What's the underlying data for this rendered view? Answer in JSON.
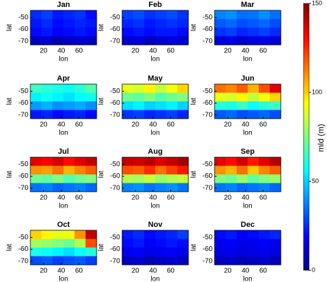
{
  "chart_data": [
    {
      "type": "heatmap",
      "title": "Jan",
      "xlabel": "lon",
      "ylabel": "lat",
      "xlim": [
        5,
        80
      ],
      "ylim": [
        -73,
        -44
      ],
      "xticks": [
        20,
        40,
        60
      ],
      "yticks": [
        -50,
        -60,
        -70
      ],
      "values": [
        [
          25,
          28,
          22,
          24,
          26,
          20
        ],
        [
          22,
          25,
          20,
          22,
          24,
          22
        ],
        [
          20,
          22,
          18,
          20,
          22,
          20
        ],
        [
          10,
          12,
          8,
          10,
          12,
          10
        ]
      ]
    },
    {
      "type": "heatmap",
      "title": "Feb",
      "xlabel": "lon",
      "ylabel": "lat",
      "xlim": [
        5,
        80
      ],
      "ylim": [
        -73,
        -44
      ],
      "xticks": [
        20,
        40,
        60
      ],
      "yticks": [
        -50,
        -60,
        -70
      ],
      "values": [
        [
          28,
          30,
          26,
          28,
          30,
          26
        ],
        [
          24,
          26,
          22,
          24,
          26,
          24
        ],
        [
          20,
          22,
          20,
          22,
          22,
          20
        ],
        [
          12,
          14,
          10,
          12,
          14,
          12
        ]
      ]
    },
    {
      "type": "heatmap",
      "title": "Mar",
      "xlabel": "lon",
      "ylabel": "lat",
      "xlim": [
        5,
        80
      ],
      "ylim": [
        -73,
        -44
      ],
      "xticks": [
        20,
        40,
        60
      ],
      "yticks": [
        -50,
        -60,
        -70
      ],
      "values": [
        [
          38,
          40,
          35,
          36,
          40,
          35
        ],
        [
          32,
          34,
          30,
          32,
          34,
          30
        ],
        [
          26,
          28,
          24,
          26,
          28,
          25
        ],
        [
          14,
          15,
          12,
          14,
          15,
          13
        ]
      ]
    },
    {
      "type": "heatmap",
      "title": "Apr",
      "xlabel": "lon",
      "ylabel": "lat",
      "xlim": [
        5,
        80
      ],
      "ylim": [
        -73,
        -44
      ],
      "xticks": [
        20,
        40,
        60
      ],
      "yticks": [
        -50,
        -60,
        -70
      ],
      "values": [
        [
          65,
          62,
          60,
          58,
          62,
          68
        ],
        [
          55,
          58,
          55,
          52,
          56,
          58
        ],
        [
          42,
          45,
          40,
          42,
          44,
          40
        ],
        [
          22,
          24,
          20,
          22,
          24,
          20
        ]
      ]
    },
    {
      "type": "heatmap",
      "title": "May",
      "xlabel": "lon",
      "ylabel": "lat",
      "xlim": [
        5,
        80
      ],
      "ylim": [
        -73,
        -44
      ],
      "xticks": [
        20,
        40,
        60
      ],
      "yticks": [
        -50,
        -60,
        -70
      ],
      "values": [
        [
          90,
          88,
          95,
          85,
          92,
          100
        ],
        [
          72,
          70,
          75,
          68,
          72,
          75
        ],
        [
          52,
          55,
          50,
          52,
          55,
          50
        ],
        [
          26,
          28,
          24,
          26,
          28,
          24
        ]
      ]
    },
    {
      "type": "heatmap",
      "title": "Jun",
      "xlabel": "lon",
      "ylabel": "lat",
      "xlim": [
        5,
        80
      ],
      "ylim": [
        -73,
        -44
      ],
      "xticks": [
        20,
        40,
        60
      ],
      "yticks": [
        -50,
        -60,
        -70
      ],
      "values": [
        [
          115,
          112,
          118,
          105,
          120,
          135
        ],
        [
          90,
          88,
          95,
          85,
          92,
          100
        ],
        [
          62,
          60,
          65,
          58,
          62,
          65
        ],
        [
          32,
          34,
          30,
          32,
          34,
          30
        ]
      ]
    },
    {
      "type": "heatmap",
      "title": "Jul",
      "xlabel": "lon",
      "ylabel": "lat",
      "xlim": [
        5,
        80
      ],
      "ylim": [
        -73,
        -44
      ],
      "xticks": [
        20,
        40,
        60
      ],
      "yticks": [
        -50,
        -60,
        -70
      ],
      "values": [
        [
          135,
          132,
          138,
          130,
          136,
          140
        ],
        [
          110,
          108,
          115,
          105,
          112,
          118
        ],
        [
          72,
          70,
          75,
          68,
          72,
          75
        ],
        [
          36,
          38,
          34,
          36,
          38,
          34
        ]
      ]
    },
    {
      "type": "heatmap",
      "title": "Aug",
      "xlabel": "lon",
      "ylabel": "lat",
      "xlim": [
        5,
        80
      ],
      "ylim": [
        -73,
        -44
      ],
      "xticks": [
        20,
        40,
        60
      ],
      "yticks": [
        -50,
        -60,
        -70
      ],
      "values": [
        [
          140,
          138,
          142,
          136,
          140,
          145
        ],
        [
          120,
          118,
          125,
          115,
          122,
          128
        ],
        [
          82,
          80,
          85,
          78,
          82,
          85
        ],
        [
          38,
          40,
          36,
          38,
          40,
          36
        ]
      ]
    },
    {
      "type": "heatmap",
      "title": "Sep",
      "xlabel": "lon",
      "ylabel": "lat",
      "xlim": [
        5,
        80
      ],
      "ylim": [
        -73,
        -44
      ],
      "xticks": [
        20,
        40,
        60
      ],
      "yticks": [
        -50,
        -60,
        -70
      ],
      "values": [
        [
          135,
          130,
          138,
          128,
          135,
          142
        ],
        [
          110,
          105,
          115,
          102,
          112,
          118
        ],
        [
          75,
          72,
          78,
          70,
          75,
          78
        ],
        [
          36,
          38,
          34,
          36,
          38,
          34
        ]
      ]
    },
    {
      "type": "heatmap",
      "title": "Oct",
      "xlabel": "lon",
      "ylabel": "lat",
      "xlim": [
        5,
        80
      ],
      "ylim": [
        -73,
        -44
      ],
      "xticks": [
        20,
        40,
        60
      ],
      "yticks": [
        -50,
        -60,
        -70
      ],
      "values": [
        [
          100,
          95,
          90,
          92,
          110,
          140
        ],
        [
          80,
          78,
          75,
          72,
          82,
          120
        ],
        [
          60,
          58,
          55,
          52,
          58,
          62
        ],
        [
          30,
          32,
          28,
          30,
          32,
          28
        ]
      ]
    },
    {
      "type": "heatmap",
      "title": "Nov",
      "xlabel": "lon",
      "ylabel": "lat",
      "xlim": [
        5,
        80
      ],
      "ylim": [
        -73,
        -44
      ],
      "xticks": [
        20,
        40,
        60
      ],
      "yticks": [
        -50,
        -60,
        -70
      ],
      "values": [
        [
          22,
          25,
          20,
          22,
          24,
          28
        ],
        [
          20,
          22,
          18,
          20,
          22,
          20
        ],
        [
          16,
          18,
          15,
          16,
          18,
          15
        ],
        [
          10,
          12,
          8,
          10,
          12,
          10
        ]
      ]
    },
    {
      "type": "heatmap",
      "title": "Dec",
      "xlabel": "lon",
      "ylabel": "lat",
      "xlim": [
        5,
        80
      ],
      "ylim": [
        -73,
        -44
      ],
      "xticks": [
        20,
        40,
        60
      ],
      "yticks": [
        -50,
        -60,
        -70
      ],
      "values": [
        [
          20,
          22,
          18,
          20,
          22,
          24
        ],
        [
          16,
          18,
          15,
          16,
          18,
          16
        ],
        [
          15,
          16,
          14,
          15,
          16,
          14
        ],
        [
          10,
          11,
          8,
          10,
          11,
          9
        ]
      ]
    }
  ],
  "colorbar": {
    "label": "mld (m)",
    "lim": [
      0,
      150
    ],
    "ticks": [
      0,
      50,
      100,
      150
    ],
    "colormap": "jet"
  }
}
